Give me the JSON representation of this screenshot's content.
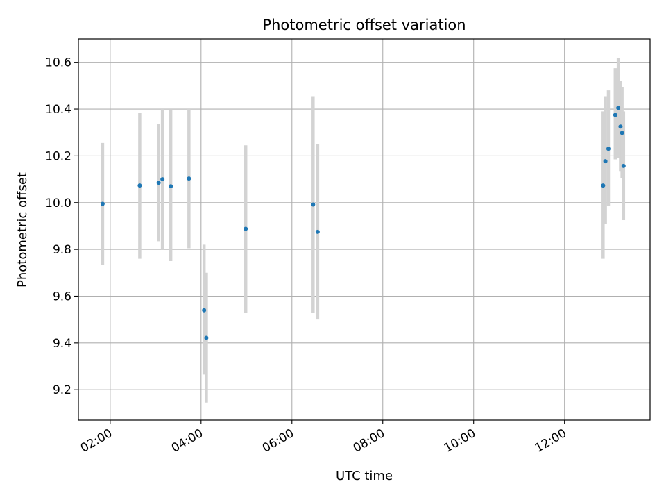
{
  "chart_data": {
    "type": "scatter",
    "title": "Photometric offset variation",
    "xlabel": "UTC time",
    "ylabel": "Photometric offset",
    "x_axis": "time",
    "xlim": [
      "01:18",
      "13:53"
    ],
    "ylim": [
      9.07,
      10.7
    ],
    "x_ticks": [
      "02:00",
      "04:00",
      "06:00",
      "08:00",
      "10:00",
      "12:00"
    ],
    "y_ticks": [
      9.2,
      9.4,
      9.6,
      9.8,
      10.0,
      10.2,
      10.4,
      10.6
    ],
    "grid": true,
    "colors": {
      "point": "#1f77b4",
      "errorbar": "#d3d3d3",
      "grid": "#b0b0b0"
    },
    "points": [
      {
        "t": "01:50",
        "y": 9.995,
        "lo": 9.735,
        "hi": 10.255
      },
      {
        "t": "02:39",
        "y": 10.073,
        "lo": 9.76,
        "hi": 10.385
      },
      {
        "t": "03:04",
        "y": 10.085,
        "lo": 9.835,
        "hi": 10.335
      },
      {
        "t": "03:09",
        "y": 10.1,
        "lo": 9.8,
        "hi": 10.4
      },
      {
        "t": "03:20",
        "y": 10.07,
        "lo": 9.75,
        "hi": 10.395
      },
      {
        "t": "03:44",
        "y": 10.103,
        "lo": 9.805,
        "hi": 10.4
      },
      {
        "t": "04:04",
        "y": 9.54,
        "lo": 9.265,
        "hi": 9.82
      },
      {
        "t": "04:07",
        "y": 9.422,
        "lo": 9.145,
        "hi": 9.7
      },
      {
        "t": "04:59",
        "y": 9.888,
        "lo": 9.53,
        "hi": 10.245
      },
      {
        "t": "06:28",
        "y": 9.992,
        "lo": 9.53,
        "hi": 10.455
      },
      {
        "t": "06:34",
        "y": 9.875,
        "lo": 9.5,
        "hi": 10.25
      },
      {
        "t": "12:51",
        "y": 10.073,
        "lo": 9.76,
        "hi": 10.39
      },
      {
        "t": "12:54",
        "y": 10.177,
        "lo": 9.91,
        "hi": 10.455
      },
      {
        "t": "12:58",
        "y": 10.23,
        "lo": 9.985,
        "hi": 10.48
      },
      {
        "t": "13:07",
        "y": 10.375,
        "lo": 10.185,
        "hi": 10.575
      },
      {
        "t": "13:11",
        "y": 10.405,
        "lo": 10.19,
        "hi": 10.62
      },
      {
        "t": "13:14",
        "y": 10.325,
        "lo": 10.135,
        "hi": 10.52
      },
      {
        "t": "13:16",
        "y": 10.298,
        "lo": 10.105,
        "hi": 10.495
      },
      {
        "t": "13:18",
        "y": 10.157,
        "lo": 9.925,
        "hi": 10.39
      }
    ]
  }
}
